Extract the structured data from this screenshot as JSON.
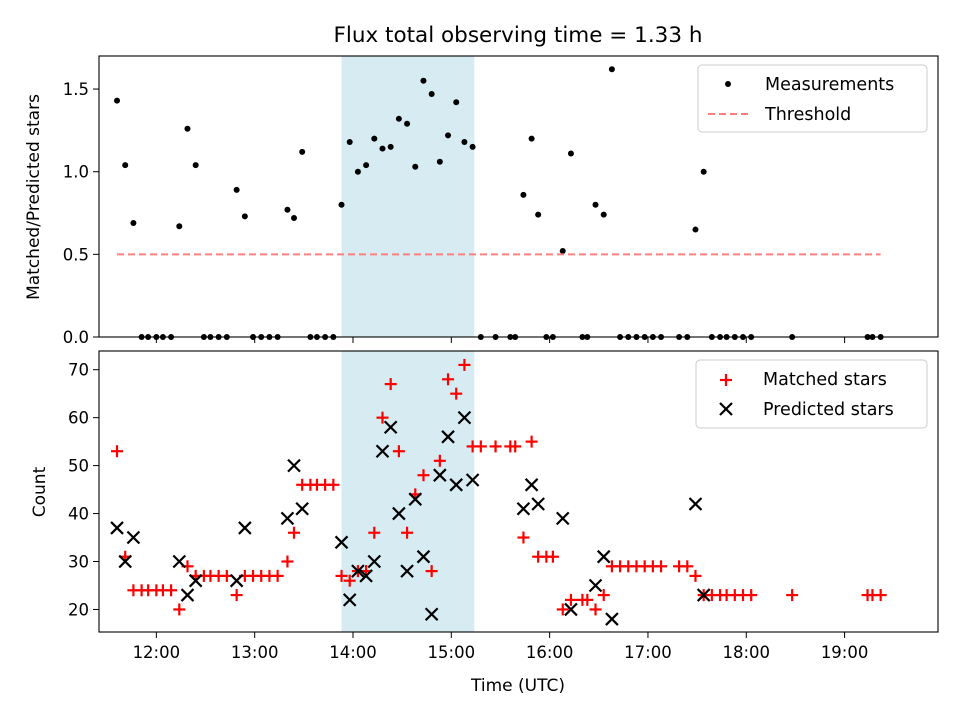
{
  "chart_data": [
    {
      "type": "scatter",
      "title": "Flux total observing time = 1.33 h",
      "xlabel": "",
      "ylabel": "Matched/Predicted stars",
      "ylim": [
        0,
        1.7
      ],
      "yticks": [
        0.0,
        0.5,
        1.0,
        1.5
      ],
      "ytick_labels": [
        "0.0",
        "0.5",
        "1.0",
        "1.5"
      ],
      "xlim": [
        "11:25",
        "19:57"
      ],
      "shaded_span": [
        "13:53",
        "15:14"
      ],
      "shade_color": "#add8e6",
      "legend_position": "upper right",
      "series": [
        {
          "name": "Measurements",
          "marker": "dot",
          "color": "#000000",
          "points": [
            [
              "11:36",
              1.43
            ],
            [
              "11:41",
              1.04
            ],
            [
              "11:46",
              0.69
            ],
            [
              "11:51",
              0.0
            ],
            [
              "11:55",
              0.0
            ],
            [
              "12:00",
              0.0
            ],
            [
              "12:04",
              0.0
            ],
            [
              "12:09",
              0.0
            ],
            [
              "12:14",
              0.67
            ],
            [
              "12:19",
              1.26
            ],
            [
              "12:24",
              1.04
            ],
            [
              "12:29",
              0.0
            ],
            [
              "12:33",
              0.0
            ],
            [
              "12:38",
              0.0
            ],
            [
              "12:43",
              0.0
            ],
            [
              "12:49",
              0.89
            ],
            [
              "12:54",
              0.73
            ],
            [
              "12:59",
              0.0
            ],
            [
              "13:04",
              0.0
            ],
            [
              "13:09",
              0.0
            ],
            [
              "13:14",
              0.0
            ],
            [
              "13:20",
              0.77
            ],
            [
              "13:24",
              0.72
            ],
            [
              "13:29",
              1.12
            ],
            [
              "13:34",
              0.0
            ],
            [
              "13:38",
              0.0
            ],
            [
              "13:43",
              0.0
            ],
            [
              "13:48",
              0.0
            ],
            [
              "13:53",
              0.8
            ],
            [
              "13:58",
              1.18
            ],
            [
              "14:03",
              1.0
            ],
            [
              "14:08",
              1.04
            ],
            [
              "14:13",
              1.2
            ],
            [
              "14:18",
              1.14
            ],
            [
              "14:23",
              1.15
            ],
            [
              "14:28",
              1.32
            ],
            [
              "14:33",
              1.29
            ],
            [
              "14:38",
              1.03
            ],
            [
              "14:43",
              1.55
            ],
            [
              "14:48",
              1.47
            ],
            [
              "14:53",
              1.06
            ],
            [
              "14:58",
              1.22
            ],
            [
              "15:03",
              1.42
            ],
            [
              "15:08",
              1.18
            ],
            [
              "15:13",
              1.15
            ],
            [
              "15:18",
              0.0
            ],
            [
              "15:27",
              0.0
            ],
            [
              "15:36",
              0.0
            ],
            [
              "15:39",
              0.0
            ],
            [
              "15:44",
              0.86
            ],
            [
              "15:49",
              1.2
            ],
            [
              "15:53",
              0.74
            ],
            [
              "15:58",
              0.0
            ],
            [
              "16:02",
              0.0
            ],
            [
              "16:08",
              0.52
            ],
            [
              "16:13",
              1.11
            ],
            [
              "16:20",
              0.0
            ],
            [
              "16:23",
              0.0
            ],
            [
              "16:28",
              0.8
            ],
            [
              "16:33",
              0.74
            ],
            [
              "16:38",
              1.62
            ],
            [
              "16:43",
              0.0
            ],
            [
              "16:48",
              0.0
            ],
            [
              "16:53",
              0.0
            ],
            [
              "16:58",
              0.0
            ],
            [
              "17:03",
              0.0
            ],
            [
              "17:08",
              0.0
            ],
            [
              "17:19",
              0.0
            ],
            [
              "17:24",
              0.0
            ],
            [
              "17:29",
              0.65
            ],
            [
              "17:34",
              1.0
            ],
            [
              "17:39",
              0.0
            ],
            [
              "17:44",
              0.0
            ],
            [
              "17:48",
              0.0
            ],
            [
              "17:53",
              0.0
            ],
            [
              "17:58",
              0.0
            ],
            [
              "18:03",
              0.0
            ],
            [
              "18:28",
              0.0
            ],
            [
              "19:14",
              0.0
            ],
            [
              "19:17",
              0.0
            ],
            [
              "19:22",
              0.0
            ]
          ]
        },
        {
          "name": "Threshold",
          "marker": "dashed-line",
          "color": "#ff7f7f",
          "points": [
            [
              "11:36",
              0.5
            ],
            [
              "19:22",
              0.5
            ]
          ]
        }
      ]
    },
    {
      "type": "scatter",
      "xlabel": "Time (UTC)",
      "ylabel": "Count",
      "ylim": [
        15.3,
        73.9
      ],
      "yticks": [
        20,
        30,
        40,
        50,
        60,
        70
      ],
      "ytick_labels": [
        "20",
        "30",
        "40",
        "50",
        "60",
        "70"
      ],
      "xlim": [
        "11:25",
        "19:57"
      ],
      "xticks": [
        "12:00",
        "13:00",
        "14:00",
        "15:00",
        "16:00",
        "17:00",
        "18:00",
        "19:00"
      ],
      "shaded_span": [
        "13:53",
        "15:14"
      ],
      "shade_color": "#add8e6",
      "legend_position": "upper right",
      "series": [
        {
          "name": "Matched stars",
          "marker": "plus",
          "color": "#ff0000",
          "points": [
            [
              "11:36",
              53
            ],
            [
              "11:41",
              31
            ],
            [
              "11:46",
              24
            ],
            [
              "11:51",
              24
            ],
            [
              "11:55",
              24
            ],
            [
              "12:00",
              24
            ],
            [
              "12:04",
              24
            ],
            [
              "12:09",
              24
            ],
            [
              "12:14",
              20
            ],
            [
              "12:19",
              29
            ],
            [
              "12:24",
              27
            ],
            [
              "12:29",
              27
            ],
            [
              "12:33",
              27
            ],
            [
              "12:38",
              27
            ],
            [
              "12:43",
              27
            ],
            [
              "12:49",
              23
            ],
            [
              "12:54",
              27
            ],
            [
              "12:59",
              27
            ],
            [
              "13:04",
              27
            ],
            [
              "13:09",
              27
            ],
            [
              "13:14",
              27
            ],
            [
              "13:20",
              30
            ],
            [
              "13:24",
              36
            ],
            [
              "13:29",
              46
            ],
            [
              "13:34",
              46
            ],
            [
              "13:38",
              46
            ],
            [
              "13:43",
              46
            ],
            [
              "13:48",
              46
            ],
            [
              "13:53",
              27
            ],
            [
              "13:58",
              26
            ],
            [
              "14:03",
              28
            ],
            [
              "14:08",
              28
            ],
            [
              "14:13",
              36
            ],
            [
              "14:18",
              60
            ],
            [
              "14:23",
              67
            ],
            [
              "14:28",
              53
            ],
            [
              "14:33",
              36
            ],
            [
              "14:38",
              44
            ],
            [
              "14:43",
              48
            ],
            [
              "14:48",
              28
            ],
            [
              "14:53",
              51
            ],
            [
              "14:58",
              68
            ],
            [
              "15:03",
              65
            ],
            [
              "15:08",
              71
            ],
            [
              "15:13",
              54
            ],
            [
              "15:18",
              54
            ],
            [
              "15:27",
              54
            ],
            [
              "15:36",
              54
            ],
            [
              "15:39",
              54
            ],
            [
              "15:44",
              35
            ],
            [
              "15:49",
              55
            ],
            [
              "15:53",
              31
            ],
            [
              "15:58",
              31
            ],
            [
              "16:02",
              31
            ],
            [
              "16:08",
              20
            ],
            [
              "16:13",
              22
            ],
            [
              "16:20",
              22
            ],
            [
              "16:23",
              22
            ],
            [
              "16:28",
              20
            ],
            [
              "16:33",
              23
            ],
            [
              "16:38",
              29
            ],
            [
              "16:43",
              29
            ],
            [
              "16:48",
              29
            ],
            [
              "16:53",
              29
            ],
            [
              "16:58",
              29
            ],
            [
              "17:03",
              29
            ],
            [
              "17:08",
              29
            ],
            [
              "17:19",
              29
            ],
            [
              "17:24",
              29
            ],
            [
              "17:29",
              27
            ],
            [
              "17:34",
              23
            ],
            [
              "17:39",
              23
            ],
            [
              "17:44",
              23
            ],
            [
              "17:48",
              23
            ],
            [
              "17:53",
              23
            ],
            [
              "17:58",
              23
            ],
            [
              "18:03",
              23
            ],
            [
              "18:28",
              23
            ],
            [
              "19:14",
              23
            ],
            [
              "19:17",
              23
            ],
            [
              "19:22",
              23
            ]
          ]
        },
        {
          "name": "Predicted stars",
          "marker": "x",
          "color": "#000000",
          "points": [
            [
              "11:36",
              37
            ],
            [
              "11:41",
              30
            ],
            [
              "11:46",
              35
            ],
            [
              "12:14",
              30
            ],
            [
              "12:19",
              23
            ],
            [
              "12:24",
              26
            ],
            [
              "12:49",
              26
            ],
            [
              "12:54",
              37
            ],
            [
              "13:20",
              39
            ],
            [
              "13:24",
              50
            ],
            [
              "13:29",
              41
            ],
            [
              "13:53",
              34
            ],
            [
              "13:58",
              22
            ],
            [
              "14:03",
              28
            ],
            [
              "14:08",
              27
            ],
            [
              "14:13",
              30
            ],
            [
              "14:18",
              53
            ],
            [
              "14:23",
              58
            ],
            [
              "14:28",
              40
            ],
            [
              "14:33",
              28
            ],
            [
              "14:38",
              43
            ],
            [
              "14:43",
              31
            ],
            [
              "14:48",
              19
            ],
            [
              "14:53",
              48
            ],
            [
              "14:58",
              56
            ],
            [
              "15:03",
              46
            ],
            [
              "15:08",
              60
            ],
            [
              "15:13",
              47
            ],
            [
              "15:44",
              41
            ],
            [
              "15:49",
              46
            ],
            [
              "15:53",
              42
            ],
            [
              "16:08",
              39
            ],
            [
              "16:13",
              20
            ],
            [
              "16:28",
              25
            ],
            [
              "16:33",
              31
            ],
            [
              "16:38",
              18
            ],
            [
              "17:29",
              42
            ],
            [
              "17:34",
              23
            ]
          ]
        }
      ]
    }
  ]
}
